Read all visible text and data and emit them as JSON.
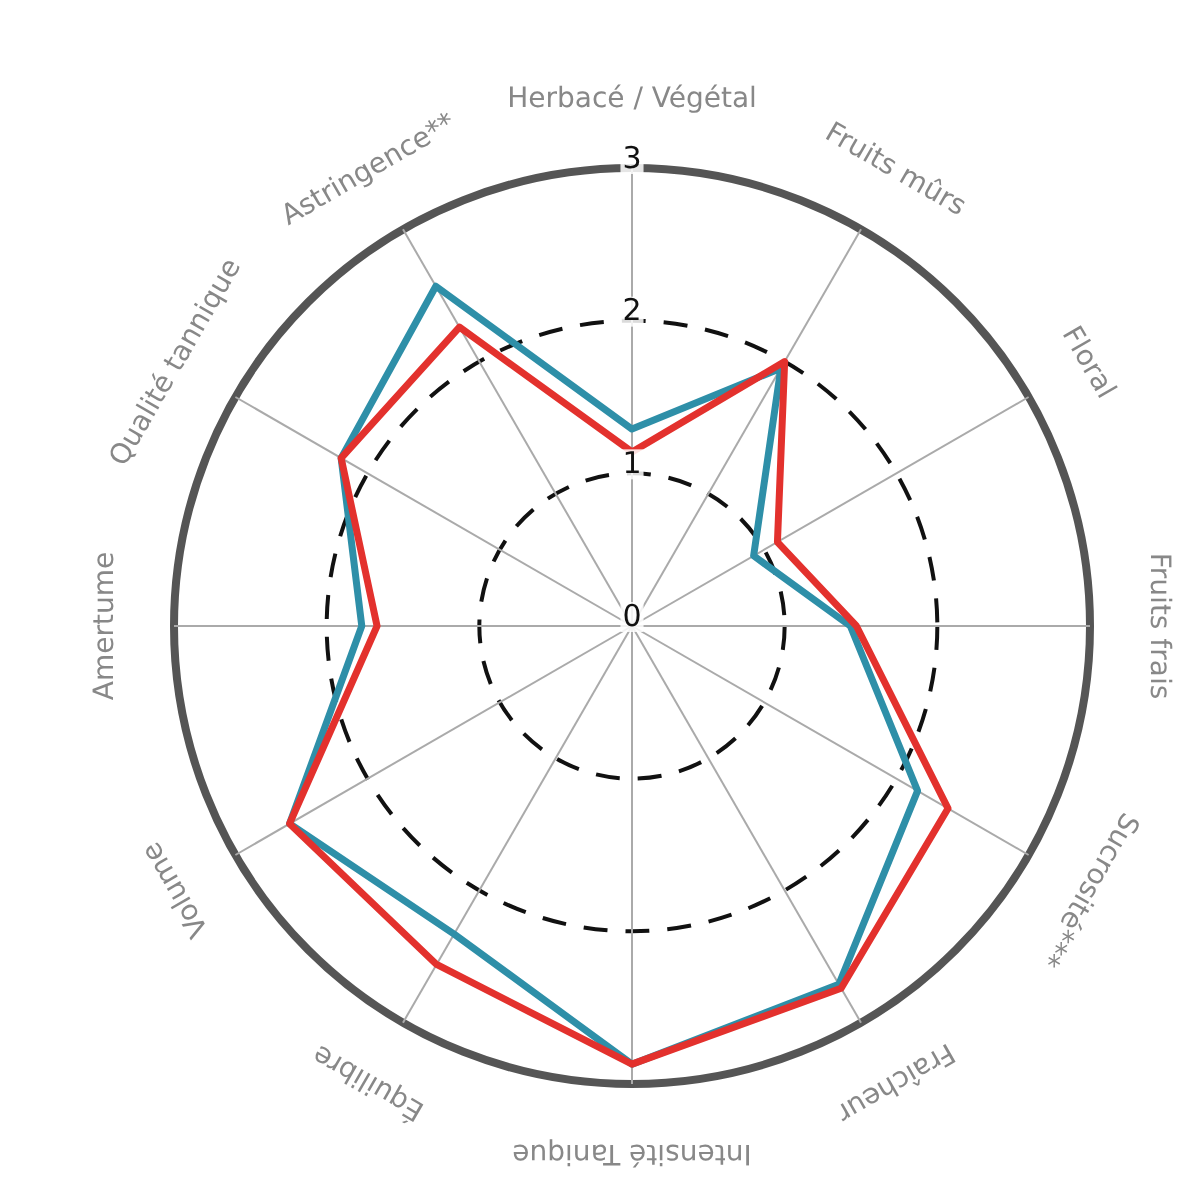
{
  "chart_data": {
    "type": "radar",
    "categories": [
      "Herbacé / Végétal",
      "Fruits mûrs",
      "Floral",
      "Fruits frais",
      "Sucrosité***",
      "Fraîcheur",
      "Intensité Tanique",
      "Équilibre",
      "Volume",
      "Amertume",
      "Qualité tannique",
      "Astringence**"
    ],
    "series": [
      {
        "color": "#e3312d",
        "values": [
          1.14,
          2.0,
          1.1,
          1.47,
          2.39,
          2.74,
          2.87,
          2.56,
          2.59,
          1.67,
          2.2,
          2.26
        ]
      },
      {
        "color": "#2e8fa8",
        "values": [
          1.29,
          1.95,
          0.92,
          1.43,
          2.16,
          2.71,
          2.87,
          2.33,
          2.59,
          1.77,
          2.2,
          2.57
        ]
      }
    ],
    "ylim": [
      0,
      3
    ],
    "yticks": [
      0,
      1,
      2,
      3
    ],
    "grid": true,
    "legend": false,
    "marker": "none",
    "line_style": "solid"
  }
}
